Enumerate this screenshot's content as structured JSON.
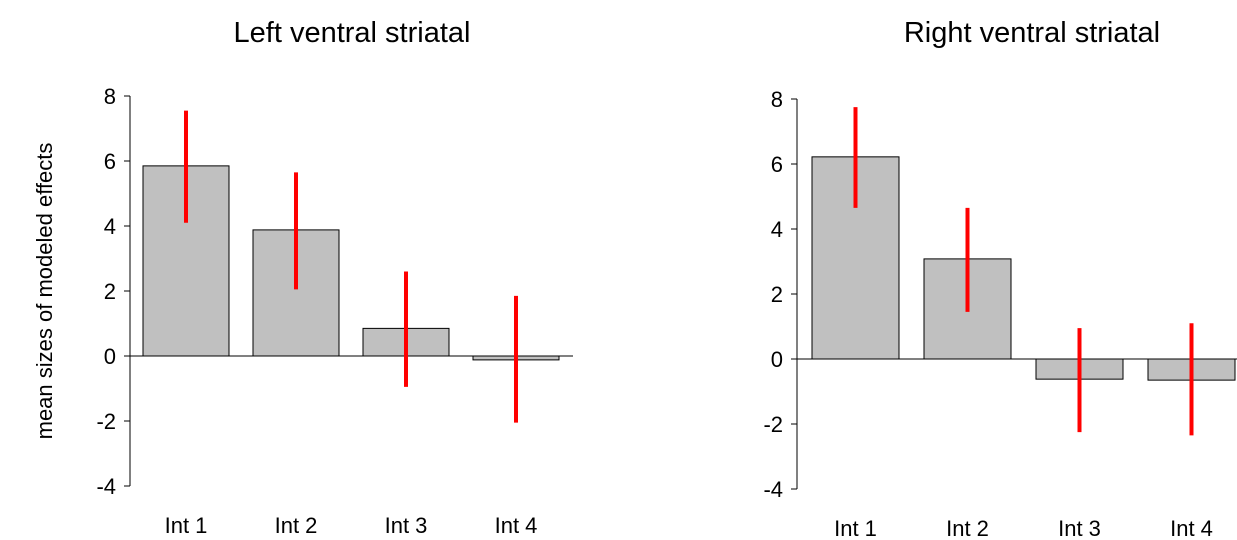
{
  "chart_data": [
    {
      "type": "bar",
      "title": "Left ventral striatal",
      "ylabel": "mean sizes of modeled effects",
      "xlabel": "",
      "categories": [
        "Int 1",
        "Int 2",
        "Int 3",
        "Int 4"
      ],
      "values": [
        5.85,
        3.88,
        0.85,
        -0.12
      ],
      "error_low": [
        4.1,
        2.05,
        -0.95,
        -2.05
      ],
      "error_high": [
        7.55,
        5.65,
        2.6,
        1.85
      ],
      "ylim": [
        -4,
        8
      ],
      "yticks": [
        "8",
        "6",
        "4",
        "2",
        "0",
        "-2",
        "-4"
      ],
      "bar_color": "#c0c0c0",
      "error_color": "#ff0000"
    },
    {
      "type": "bar",
      "title": "Right ventral striatal",
      "ylabel": "",
      "xlabel": "",
      "categories": [
        "Int 1",
        "Int 2",
        "Int 3",
        "Int 4"
      ],
      "values": [
        6.22,
        3.08,
        -0.62,
        -0.65
      ],
      "error_low": [
        4.65,
        1.45,
        -2.25,
        -2.35
      ],
      "error_high": [
        7.75,
        4.65,
        0.95,
        1.1
      ],
      "ylim": [
        -4,
        8
      ],
      "yticks": [
        "8",
        "6",
        "4",
        "2",
        "0",
        "-2",
        "-4"
      ],
      "bar_color": "#c0c0c0",
      "error_color": "#ff0000"
    }
  ]
}
